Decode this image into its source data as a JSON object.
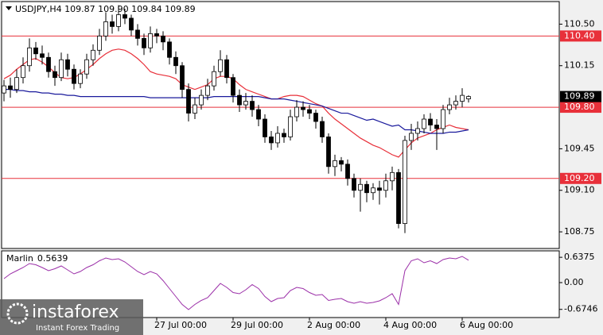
{
  "chart_data": [
    {
      "type": "candlestick",
      "title": "USDJPY,H4  109.87 109.90 109.84 109.89",
      "categories": [
        null,
        null,
        null,
        null,
        null,
        null,
        null,
        null,
        null,
        null,
        null,
        null,
        null,
        null,
        null,
        null,
        null,
        null,
        null,
        null,
        null,
        null,
        null,
        null,
        "27 Jul 00:00",
        null,
        null,
        null,
        null,
        null,
        null,
        null,
        null,
        null,
        null,
        null,
        "29 Jul 00:00",
        null,
        null,
        null,
        null,
        null,
        null,
        null,
        null,
        null,
        null,
        null,
        "2 Aug 00:00",
        null,
        null,
        null,
        null,
        null,
        null,
        null,
        null,
        null,
        null,
        null,
        "4 Aug 00:00",
        null,
        null,
        null,
        null,
        null,
        null,
        null,
        null,
        null,
        null,
        null,
        "6 Aug 00:00",
        null
      ],
      "open": [
        109.92,
        109.98,
        109.95,
        110.05,
        110.15,
        110.3,
        110.25,
        110.22,
        110.1,
        110.05,
        110.2,
        110.12,
        110.0,
        110.08,
        110.2,
        110.28,
        110.4,
        110.52,
        110.48,
        110.58,
        110.55,
        110.45,
        110.38,
        110.3,
        110.42,
        110.4,
        110.35,
        110.22,
        110.15,
        109.95,
        109.75,
        109.82,
        109.9,
        109.98,
        110.1,
        110.2,
        110.05,
        109.9,
        109.82,
        109.85,
        109.78,
        109.7,
        109.55,
        109.5,
        109.58,
        109.55,
        109.72,
        109.8,
        109.78,
        109.75,
        109.68,
        109.55,
        109.3,
        109.35,
        109.32,
        109.2,
        109.1,
        109.15,
        109.08,
        109.12,
        109.1,
        109.18,
        109.25,
        108.82,
        109.52,
        109.58,
        109.62,
        109.7,
        109.65,
        109.62,
        109.78,
        109.82,
        109.85,
        109.87
      ],
      "high": [
        110.03,
        110.05,
        110.12,
        110.22,
        110.38,
        110.35,
        110.32,
        110.26,
        110.15,
        110.26,
        110.25,
        110.16,
        110.12,
        110.25,
        110.33,
        110.46,
        110.6,
        110.58,
        110.66,
        110.63,
        110.58,
        110.5,
        110.42,
        110.48,
        110.46,
        110.44,
        110.38,
        110.27,
        110.18,
        110.0,
        109.88,
        109.95,
        110.04,
        110.15,
        110.28,
        110.24,
        110.08,
        109.95,
        109.92,
        109.9,
        109.82,
        109.74,
        109.6,
        109.64,
        109.62,
        109.78,
        109.86,
        109.85,
        109.82,
        109.78,
        109.72,
        109.58,
        109.4,
        109.38,
        109.36,
        109.24,
        109.2,
        109.18,
        109.16,
        109.18,
        109.24,
        109.3,
        109.28,
        109.56,
        109.66,
        109.68,
        109.74,
        109.75,
        109.7,
        109.82,
        109.88,
        109.9,
        109.96,
        109.9
      ],
      "low": [
        109.85,
        109.88,
        109.92,
        110.0,
        110.1,
        110.2,
        110.16,
        110.05,
        109.98,
        110.02,
        110.06,
        109.95,
        109.96,
        110.04,
        110.15,
        110.24,
        110.36,
        110.42,
        110.44,
        110.5,
        110.4,
        110.32,
        110.24,
        110.26,
        110.34,
        110.28,
        110.16,
        110.08,
        109.88,
        109.68,
        109.7,
        109.78,
        109.86,
        109.94,
        110.06,
        110.0,
        109.84,
        109.76,
        109.78,
        109.72,
        109.64,
        109.5,
        109.44,
        109.46,
        109.5,
        109.52,
        109.68,
        109.72,
        109.7,
        109.62,
        109.5,
        109.24,
        109.22,
        109.26,
        109.14,
        109.04,
        108.92,
        109.0,
        109.02,
        108.98,
        109.04,
        109.1,
        108.78,
        108.74,
        109.44,
        109.52,
        109.58,
        109.6,
        109.44,
        109.58,
        109.74,
        109.78,
        109.8,
        109.84
      ],
      "close": [
        109.98,
        109.95,
        110.05,
        110.15,
        110.3,
        110.25,
        110.22,
        110.1,
        110.05,
        110.2,
        110.12,
        110.0,
        110.08,
        110.2,
        110.28,
        110.4,
        110.52,
        110.48,
        110.58,
        110.55,
        110.45,
        110.38,
        110.3,
        110.42,
        110.4,
        110.35,
        110.22,
        110.15,
        109.95,
        109.75,
        109.82,
        109.9,
        109.98,
        110.1,
        110.2,
        110.05,
        109.9,
        109.82,
        109.85,
        109.78,
        109.7,
        109.55,
        109.5,
        109.58,
        109.55,
        109.72,
        109.8,
        109.78,
        109.75,
        109.68,
        109.55,
        109.3,
        109.35,
        109.32,
        109.2,
        109.1,
        109.15,
        109.08,
        109.12,
        109.1,
        109.18,
        109.25,
        108.82,
        109.52,
        109.58,
        109.62,
        109.7,
        109.65,
        109.62,
        109.78,
        109.82,
        109.85,
        109.9,
        109.89
      ],
      "last_label": "109.89",
      "lines": [
        {
          "color": "#e8303a",
          "values": [
            110.04,
            110.07,
            110.12,
            110.16,
            110.2,
            110.21,
            110.18,
            110.14,
            110.09,
            110.05,
            110.04,
            110.05,
            110.08,
            110.12,
            110.16,
            110.21,
            110.25,
            110.28,
            110.29,
            110.28,
            110.25,
            110.21,
            110.16,
            110.1,
            110.08,
            110.07,
            110.06,
            110.04,
            109.99,
            109.97,
            109.95,
            109.97,
            109.99,
            110.04,
            110.06,
            110.06,
            110.04,
            109.99,
            109.95,
            109.93,
            109.91,
            109.89,
            109.87,
            109.87,
            109.89,
            109.9,
            109.9,
            109.89,
            109.86,
            109.83,
            109.81,
            109.75,
            109.7,
            109.66,
            109.62,
            109.58,
            109.54,
            109.51,
            109.48,
            109.46,
            109.43,
            109.4,
            109.38,
            109.44,
            109.5,
            109.54,
            109.56,
            109.58,
            109.61,
            109.63,
            109.65,
            109.63,
            109.62,
            109.61
          ]
        },
        {
          "color": "#1a1a9c",
          "values": [
            109.95,
            109.95,
            109.94,
            109.94,
            109.93,
            109.93,
            109.92,
            109.92,
            109.91,
            109.91,
            109.9,
            109.9,
            109.89,
            109.89,
            109.89,
            109.89,
            109.89,
            109.89,
            109.89,
            109.89,
            109.89,
            109.89,
            109.89,
            109.88,
            109.88,
            109.88,
            109.88,
            109.88,
            109.88,
            109.88,
            109.88,
            109.88,
            109.88,
            109.89,
            109.89,
            109.89,
            109.89,
            109.89,
            109.89,
            109.89,
            109.89,
            109.88,
            109.87,
            109.87,
            109.87,
            109.86,
            109.85,
            109.84,
            109.83,
            109.82,
            109.81,
            109.79,
            109.77,
            109.75,
            109.75,
            109.73,
            109.71,
            109.69,
            109.7,
            109.68,
            109.66,
            109.64,
            109.65,
            109.61,
            109.61,
            109.6,
            109.59,
            109.58,
            109.58,
            109.58,
            109.59,
            109.59,
            109.6,
            109.61
          ]
        }
      ],
      "levels": [
        {
          "value": 110.4,
          "label": "110.40"
        },
        {
          "value": 109.8,
          "label": "109.80"
        },
        {
          "value": 109.2,
          "label": "109.20"
        }
      ],
      "level_color": "#e8303a",
      "ylim": [
        108.61,
        110.69
      ],
      "yticks": [
        {
          "value": 110.5,
          "label": "110.50"
        },
        {
          "value": 110.15,
          "label": "110.15"
        },
        {
          "value": 109.45,
          "label": "109.45"
        },
        {
          "value": 109.1,
          "label": "109.10"
        },
        {
          "value": 108.75,
          "label": "108.75"
        }
      ]
    },
    {
      "type": "line",
      "title": "Marlin",
      "value_label": "0.5639",
      "color": "#9b2fa8",
      "values": [
        0.1,
        0.22,
        0.3,
        0.38,
        0.48,
        0.45,
        0.38,
        0.3,
        0.35,
        0.42,
        0.32,
        0.22,
        0.28,
        0.38,
        0.45,
        0.55,
        0.62,
        0.58,
        0.6,
        0.52,
        0.4,
        0.28,
        0.2,
        0.28,
        0.22,
        0.05,
        -0.15,
        -0.35,
        -0.55,
        -0.68,
        -0.55,
        -0.45,
        -0.38,
        -0.2,
        -0.02,
        -0.12,
        -0.25,
        -0.28,
        -0.18,
        -0.05,
        -0.15,
        -0.35,
        -0.48,
        -0.4,
        -0.38,
        -0.2,
        -0.12,
        -0.15,
        -0.25,
        -0.32,
        -0.3,
        -0.45,
        -0.42,
        -0.4,
        -0.48,
        -0.52,
        -0.48,
        -0.52,
        -0.5,
        -0.46,
        -0.38,
        -0.28,
        -0.55,
        0.3,
        0.55,
        0.6,
        0.5,
        0.55,
        0.48,
        0.58,
        0.62,
        0.6,
        0.66,
        0.5639
      ],
      "ylim": [
        -0.88,
        0.8
      ],
      "yticks": [
        0.6375,
        {
          "value": 0,
          "label": "0.00"
        },
        -0.6746
      ]
    }
  ],
  "watermark": {
    "brand": "instaforex",
    "tagline": "Instant Forex Trading"
  }
}
